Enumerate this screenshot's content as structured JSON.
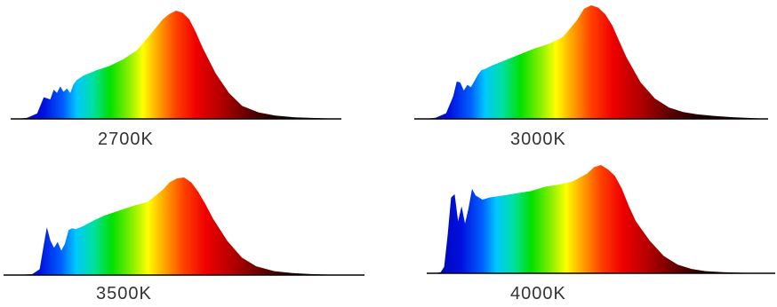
{
  "chart_data": [
    {
      "type": "area",
      "label": "2700K",
      "x": [
        0.0,
        0.02,
        0.05,
        0.08,
        0.1,
        0.12,
        0.13,
        0.14,
        0.15,
        0.16,
        0.17,
        0.18,
        0.19,
        0.2,
        0.22,
        0.26,
        0.3,
        0.34,
        0.38,
        0.42,
        0.46,
        0.48,
        0.5,
        0.52,
        0.54,
        0.56,
        0.58,
        0.62,
        0.66,
        0.7,
        0.75,
        0.8,
        0.86,
        0.92,
        1.0
      ],
      "y": [
        0.0,
        0.0,
        0.01,
        0.05,
        0.2,
        0.18,
        0.27,
        0.24,
        0.3,
        0.25,
        0.28,
        0.24,
        0.32,
        0.36,
        0.4,
        0.45,
        0.49,
        0.55,
        0.63,
        0.77,
        0.92,
        0.97,
        1.0,
        0.98,
        0.92,
        0.8,
        0.66,
        0.42,
        0.24,
        0.12,
        0.06,
        0.03,
        0.015,
        0.008,
        0.0
      ]
    },
    {
      "type": "area",
      "label": "3000K",
      "x": [
        0.0,
        0.03,
        0.06,
        0.09,
        0.11,
        0.12,
        0.13,
        0.14,
        0.15,
        0.16,
        0.18,
        0.19,
        0.2,
        0.22,
        0.26,
        0.3,
        0.34,
        0.38,
        0.42,
        0.46,
        0.48,
        0.5,
        0.52,
        0.54,
        0.56,
        0.58,
        0.6,
        0.64,
        0.68,
        0.72,
        0.76,
        0.8,
        0.85,
        0.9,
        0.95,
        1.0
      ],
      "y": [
        0.0,
        0.0,
        0.01,
        0.05,
        0.2,
        0.33,
        0.32,
        0.25,
        0.3,
        0.28,
        0.39,
        0.43,
        0.44,
        0.47,
        0.52,
        0.57,
        0.62,
        0.66,
        0.72,
        0.87,
        0.97,
        1.0,
        0.98,
        0.92,
        0.82,
        0.68,
        0.54,
        0.32,
        0.18,
        0.1,
        0.06,
        0.04,
        0.025,
        0.015,
        0.008,
        0.0
      ]
    },
    {
      "type": "area",
      "label": "3500K",
      "x": [
        0.0,
        0.04,
        0.08,
        0.1,
        0.11,
        0.12,
        0.13,
        0.14,
        0.15,
        0.16,
        0.17,
        0.18,
        0.19,
        0.2,
        0.22,
        0.25,
        0.28,
        0.32,
        0.36,
        0.4,
        0.44,
        0.46,
        0.48,
        0.5,
        0.52,
        0.54,
        0.56,
        0.58,
        0.62,
        0.66,
        0.7,
        0.75,
        0.8,
        0.85,
        0.9,
        0.95,
        1.0
      ],
      "y": [
        0.0,
        0.0,
        0.01,
        0.06,
        0.28,
        0.49,
        0.35,
        0.28,
        0.34,
        0.25,
        0.32,
        0.46,
        0.48,
        0.47,
        0.5,
        0.56,
        0.61,
        0.66,
        0.71,
        0.75,
        0.87,
        0.95,
        0.99,
        1.0,
        0.95,
        0.85,
        0.72,
        0.58,
        0.35,
        0.18,
        0.09,
        0.04,
        0.02,
        0.01,
        0.005,
        0.002,
        0.0
      ]
    },
    {
      "type": "area",
      "label": "4000K",
      "x": [
        0.0,
        0.02,
        0.04,
        0.05,
        0.06,
        0.07,
        0.08,
        0.09,
        0.1,
        0.11,
        0.12,
        0.13,
        0.14,
        0.15,
        0.16,
        0.18,
        0.22,
        0.26,
        0.3,
        0.34,
        0.38,
        0.42,
        0.46,
        0.48,
        0.5,
        0.52,
        0.54,
        0.56,
        0.58,
        0.6,
        0.64,
        0.68,
        0.72,
        0.76,
        0.8,
        0.85,
        0.9,
        0.95,
        1.0
      ],
      "y": [
        0.0,
        0.0,
        0.01,
        0.06,
        0.35,
        0.7,
        0.73,
        0.48,
        0.62,
        0.46,
        0.6,
        0.78,
        0.72,
        0.7,
        0.68,
        0.7,
        0.72,
        0.74,
        0.76,
        0.8,
        0.82,
        0.85,
        0.92,
        0.98,
        1.0,
        0.96,
        0.9,
        0.78,
        0.62,
        0.48,
        0.3,
        0.16,
        0.08,
        0.04,
        0.02,
        0.01,
        0.005,
        0.002,
        0.0
      ]
    }
  ]
}
